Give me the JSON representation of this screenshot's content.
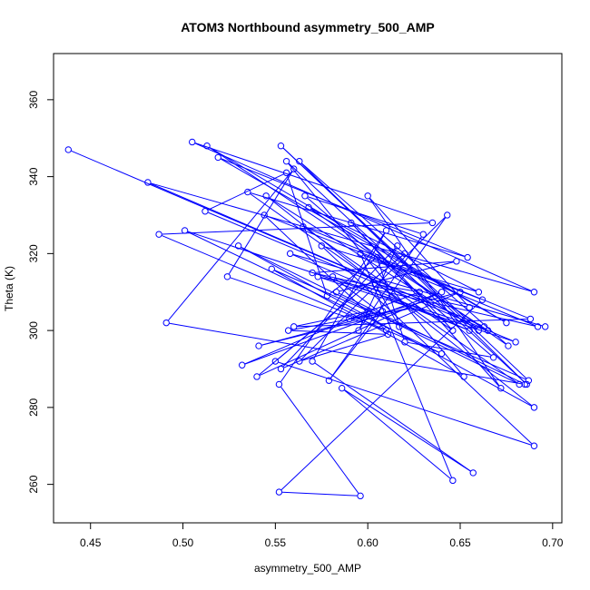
{
  "chart_data": {
    "type": "line",
    "title": "ATOM3 Northbound asymmetry_500_AMP",
    "xlabel": "asymmetry_500_AMP",
    "ylabel": "Theta (K)",
    "xlim": [
      0.43,
      0.705
    ],
    "ylim": [
      250,
      372
    ],
    "xticks": [
      0.45,
      0.5,
      0.55,
      0.6,
      0.65,
      0.7
    ],
    "xtick_labels": [
      "0.45",
      "0.50",
      "0.55",
      "0.60",
      "0.65",
      "0.70"
    ],
    "yticks": [
      260,
      280,
      300,
      320,
      340,
      360
    ],
    "ytick_labels": [
      "260",
      "280",
      "300",
      "320",
      "340",
      "360"
    ],
    "grid": false,
    "legend": "none",
    "markers": "open-circle",
    "series": [
      {
        "color": "#0000ff",
        "x": [
          0.438,
          0.663,
          0.481,
          0.69,
          0.505,
          0.635,
          0.487,
          0.64,
          0.501,
          0.665,
          0.513,
          0.675,
          0.519,
          0.654,
          0.535,
          0.682,
          0.53,
          0.69,
          0.545,
          0.66,
          0.553,
          0.687,
          0.548,
          0.652,
          0.556,
          0.686,
          0.563,
          0.676,
          0.568,
          0.66,
          0.575,
          0.69,
          0.55,
          0.62,
          0.54,
          0.64,
          0.532,
          0.6,
          0.56,
          0.688,
          0.565,
          0.646,
          0.591,
          0.672,
          0.6,
          0.655,
          0.57,
          0.648,
          0.583,
          0.685,
          0.491,
          0.56,
          0.524,
          0.61,
          0.544,
          0.662,
          0.552,
          0.596,
          0.552,
          0.61,
          0.57,
          0.657,
          0.586,
          0.646,
          0.596,
          0.692,
          0.573,
          0.68,
          0.512,
          0.556,
          0.578,
          0.605,
          0.62,
          0.668,
          0.566,
          0.63,
          0.595,
          0.616,
          0.553,
          0.65,
          0.541,
          0.625,
          0.557,
          0.611,
          0.563,
          0.643,
          0.579,
          0.608,
          0.59,
          0.628,
          0.604,
          0.617,
          0.581,
          0.655,
          0.558,
          0.696
        ],
        "y": [
          347,
          301,
          338.5,
          310,
          349,
          328,
          325,
          294,
          326,
          300,
          348,
          302,
          345,
          319,
          336,
          286,
          322,
          280,
          335,
          300,
          348,
          287,
          316,
          288,
          344,
          286,
          344,
          296,
          332,
          310,
          322,
          270,
          292,
          320,
          288,
          310,
          291,
          305,
          301,
          303,
          327,
          300,
          328,
          285,
          335,
          306,
          315,
          318,
          310,
          286,
          302,
          342,
          314,
          300,
          330,
          308,
          258,
          257,
          286,
          326,
          292,
          263,
          285,
          261,
          320,
          301,
          314,
          297,
          331,
          341,
          309,
          319,
          297,
          293,
          335,
          325,
          300,
          322,
          290,
          310,
          296,
          306,
          300,
          299,
          292,
          330,
          287,
          305,
          303,
          310,
          312,
          301,
          314,
          300,
          320,
          301
        ]
      }
    ]
  }
}
